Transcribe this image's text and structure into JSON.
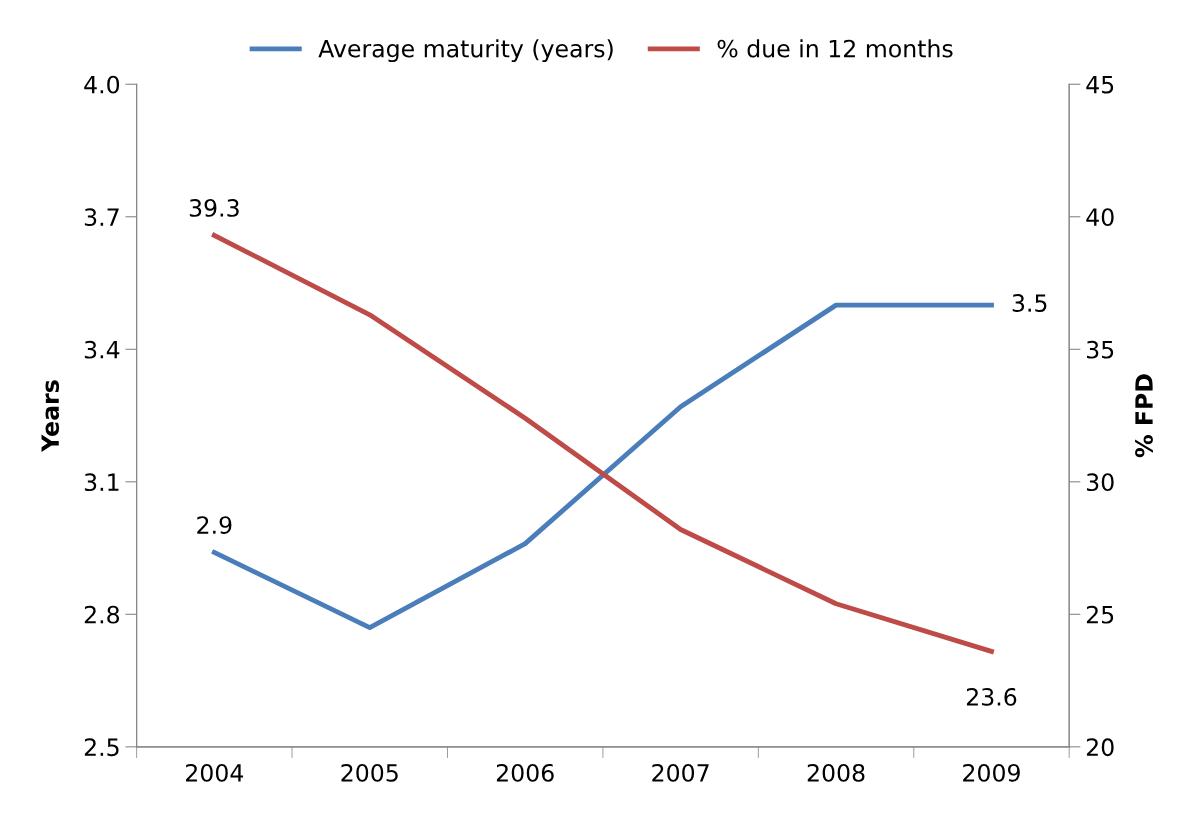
{
  "chart_data": {
    "type": "line",
    "categories": [
      "2004",
      "2005",
      "2006",
      "2007",
      "2008",
      "2009"
    ],
    "ylabel": "Years",
    "y2label": "% FPD",
    "ylim": [
      2.5,
      4.0
    ],
    "yticks": [
      {
        "value": 2.5,
        "label": "2.5"
      },
      {
        "value": 2.8,
        "label": "2.8"
      },
      {
        "value": 3.1,
        "label": "3.1"
      },
      {
        "value": 3.4,
        "label": "3.4"
      },
      {
        "value": 3.7,
        "label": "3.7"
      },
      {
        "value": 4.0,
        "label": "4.0"
      }
    ],
    "y2lim": [
      20,
      45
    ],
    "y2ticks": [
      20,
      25,
      30,
      35,
      40,
      45
    ],
    "grid": false,
    "legend": "top",
    "marker": "none",
    "line_style": "solid",
    "series": [
      {
        "name": "Average maturity (years)",
        "color": "#4a7ebb",
        "values": [
          2.94,
          2.77,
          2.96,
          3.27,
          3.5,
          3.5
        ],
        "value_labels": [
          "2.9",
          null,
          null,
          null,
          null,
          "3.5"
        ]
      },
      {
        "name": "% due in 12 months",
        "color": "#be4b48",
        "axis": "y2",
        "values": [
          39.3,
          36.3,
          32.4,
          28.2,
          25.4,
          23.6
        ],
        "value_labels": [
          "39.3",
          null,
          null,
          null,
          null,
          "23.6"
        ]
      }
    ]
  }
}
